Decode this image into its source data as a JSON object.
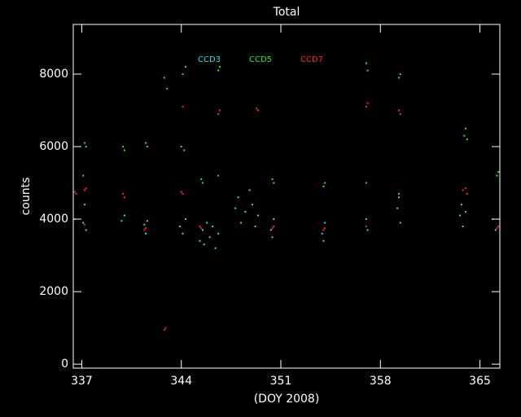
{
  "chart_data": {
    "type": "scatter",
    "title": "Total",
    "x_label": "(DOY 2008)",
    "y_label": "counts",
    "xlim": [
      336.4,
      366.4
    ],
    "ylim": [
      -110,
      9370
    ],
    "xticks": [
      337,
      344,
      351,
      358,
      365
    ],
    "yticks": [
      0,
      2000,
      4000,
      6000,
      8000
    ],
    "series": [
      {
        "name": "CCD3",
        "color": "#33dddd",
        "x": [
          336.5,
          337.1,
          337.2,
          337.3,
          339.8,
          340.0,
          341.4,
          341.5,
          341.6,
          343.9,
          344.1,
          344.3,
          345.3,
          345.5,
          345.6,
          345.8,
          346.0,
          346.2,
          346.4,
          346.6,
          347.8,
          348.0,
          348.2,
          348.5,
          348.8,
          349.0,
          349.2,
          349.4,
          350.3,
          350.5,
          350.4,
          353.9,
          354.1,
          354.0,
          357.0,
          357.1,
          359.2,
          359.4,
          359.3,
          363.6,
          363.8,
          364.0,
          363.7,
          365.9,
          366.1
        ],
        "values": [
          4000,
          3900,
          4400,
          3700,
          3950,
          4100,
          3850,
          3600,
          3950,
          3800,
          3600,
          4000,
          3400,
          3700,
          3300,
          3900,
          3500,
          3800,
          3200,
          3600,
          4300,
          4600,
          3900,
          4200,
          4800,
          4400,
          3800,
          4100,
          3700,
          4000,
          3500,
          3600,
          3900,
          3400,
          4000,
          3700,
          4300,
          3900,
          4600,
          4100,
          3800,
          4200,
          4400,
          4000,
          3700
        ]
      },
      {
        "name": "CCD5",
        "color": "#22ee22",
        "x": [
          337.2,
          337.3,
          337.1,
          339.9,
          340.0,
          341.5,
          341.6,
          342.8,
          343.0,
          344.0,
          344.2,
          344.1,
          344.3,
          345.4,
          345.5,
          346.6,
          346.7,
          346.6,
          350.4,
          350.5,
          354.0,
          354.1,
          357.0,
          357.1,
          357.0,
          359.3,
          359.4,
          359.3,
          363.9,
          364.0,
          364.1,
          366.2,
          366.3
        ],
        "values": [
          6100,
          6000,
          5200,
          6000,
          5900,
          6100,
          6000,
          7900,
          7600,
          6000,
          5900,
          8000,
          8200,
          5100,
          5000,
          8100,
          8200,
          5200,
          5100,
          5000,
          4900,
          5000,
          8300,
          8100,
          5000,
          7900,
          8000,
          4700,
          6300,
          6500,
          6200,
          5200,
          5300
        ]
      },
      {
        "name": "CCD7",
        "color": "#ff2222",
        "x": [
          336.5,
          336.6,
          337.2,
          337.3,
          337.2,
          339.9,
          340.0,
          341.4,
          341.5,
          342.8,
          342.9,
          344.0,
          344.1,
          344.1,
          345.3,
          345.4,
          346.6,
          346.7,
          349.3,
          349.4,
          350.4,
          350.5,
          354.0,
          354.1,
          357.0,
          357.1,
          357.0,
          359.3,
          359.4,
          363.8,
          364.0,
          364.1,
          366.3,
          366.2
        ],
        "values": [
          4750,
          4700,
          4800,
          4850,
          3850,
          4700,
          4600,
          3700,
          3750,
          950,
          1000,
          4750,
          4700,
          7100,
          3800,
          3750,
          6900,
          7000,
          7050,
          7000,
          3750,
          3800,
          3700,
          3750,
          7100,
          7200,
          3800,
          7000,
          6900,
          4800,
          4850,
          4700,
          3800,
          3750
        ]
      }
    ]
  }
}
